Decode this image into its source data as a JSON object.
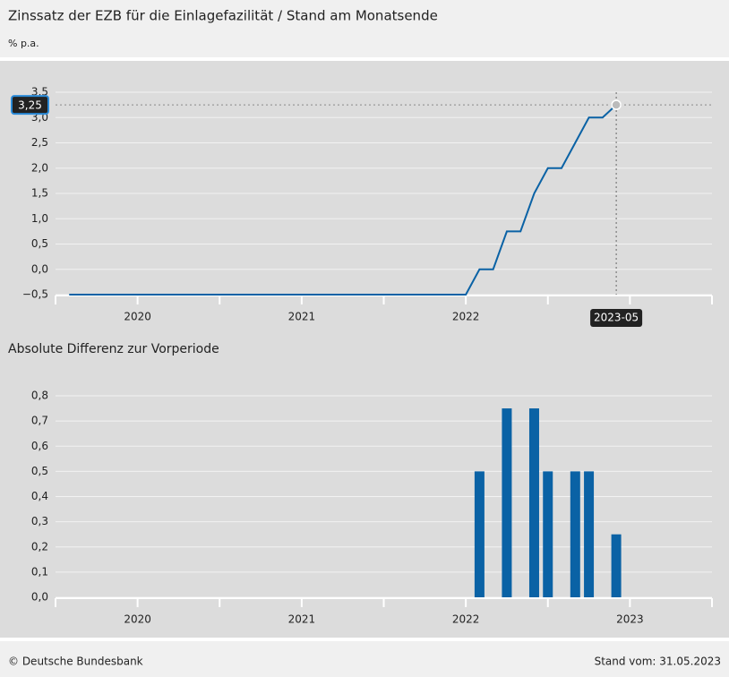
{
  "header": {
    "title": "Zinssatz der EZB für die Einlagefazilität / Stand am Monatsende",
    "subtitle": "% p.a."
  },
  "chart_data": [
    {
      "type": "line",
      "categories": [
        "2020-01",
        "2020-02",
        "2020-03",
        "2020-04",
        "2020-05",
        "2020-06",
        "2020-07",
        "2020-08",
        "2020-09",
        "2020-10",
        "2020-11",
        "2020-12",
        "2021-01",
        "2021-02",
        "2021-03",
        "2021-04",
        "2021-05",
        "2021-06",
        "2021-07",
        "2021-08",
        "2021-09",
        "2021-10",
        "2021-11",
        "2021-12",
        "2022-01",
        "2022-02",
        "2022-03",
        "2022-04",
        "2022-05",
        "2022-06",
        "2022-07",
        "2022-08",
        "2022-09",
        "2022-10",
        "2022-11",
        "2022-12",
        "2023-01",
        "2023-02",
        "2023-03",
        "2023-04",
        "2023-05"
      ],
      "values": [
        -0.5,
        -0.5,
        -0.5,
        -0.5,
        -0.5,
        -0.5,
        -0.5,
        -0.5,
        -0.5,
        -0.5,
        -0.5,
        -0.5,
        -0.5,
        -0.5,
        -0.5,
        -0.5,
        -0.5,
        -0.5,
        -0.5,
        -0.5,
        -0.5,
        -0.5,
        -0.5,
        -0.5,
        -0.5,
        -0.5,
        -0.5,
        -0.5,
        -0.5,
        -0.5,
        0,
        0,
        0.75,
        0.75,
        1.5,
        2.0,
        2.0,
        2.5,
        3.0,
        3.0,
        3.25
      ],
      "color": "#0a62a5",
      "xlim": [
        "2019-12",
        "2023-12"
      ],
      "xticks": [
        "2019-12",
        "2020-06",
        "2020-12",
        "2021-06",
        "2021-12",
        "2022-06",
        "2022-12",
        "2023-06",
        "2023-12"
      ],
      "xtick_labels": [
        {
          "value": "2020-06",
          "label": "2020"
        },
        {
          "value": "2021-06",
          "label": "2021"
        },
        {
          "value": "2022-06",
          "label": "2022"
        }
      ],
      "ylim": [
        -0.5,
        3.5
      ],
      "yticks": [
        {
          "value": -0.5,
          "label": "−0,5"
        },
        {
          "value": 0,
          "label": "0,0"
        },
        {
          "value": 0.5,
          "label": "0,5"
        },
        {
          "value": 1.0,
          "label": "1,0"
        },
        {
          "value": 1.5,
          "label": "1,5"
        },
        {
          "value": 2.0,
          "label": "2,0"
        },
        {
          "value": 2.5,
          "label": "2,5"
        },
        {
          "value": 3.0,
          "label": "3,0"
        },
        {
          "value": 3.5,
          "label": "3,5"
        }
      ],
      "grid": true,
      "hover": {
        "x": "2023-05",
        "value": 3.25,
        "value_label": "3,25"
      }
    },
    {
      "type": "bar",
      "title": "Absolute Differenz zur Vorperiode",
      "categories": [
        "2020-01",
        "2020-02",
        "2020-03",
        "2020-04",
        "2020-05",
        "2020-06",
        "2020-07",
        "2020-08",
        "2020-09",
        "2020-10",
        "2020-11",
        "2020-12",
        "2021-01",
        "2021-02",
        "2021-03",
        "2021-04",
        "2021-05",
        "2021-06",
        "2021-07",
        "2021-08",
        "2021-09",
        "2021-10",
        "2021-11",
        "2021-12",
        "2022-01",
        "2022-02",
        "2022-03",
        "2022-04",
        "2022-05",
        "2022-06",
        "2022-07",
        "2022-08",
        "2022-09",
        "2022-10",
        "2022-11",
        "2022-12",
        "2023-01",
        "2023-02",
        "2023-03",
        "2023-04",
        "2023-05"
      ],
      "values": [
        0,
        0,
        0,
        0,
        0,
        0,
        0,
        0,
        0,
        0,
        0,
        0,
        0,
        0,
        0,
        0,
        0,
        0,
        0,
        0,
        0,
        0,
        0,
        0,
        0,
        0,
        0,
        0,
        0,
        0,
        0.5,
        0,
        0.75,
        0,
        0.75,
        0.5,
        0,
        0.5,
        0.5,
        0,
        0.25
      ],
      "color": "#0a62a5",
      "xlim": [
        "2019-12",
        "2023-12"
      ],
      "xticks": [
        "2019-12",
        "2020-06",
        "2020-12",
        "2021-06",
        "2021-12",
        "2022-06",
        "2022-12",
        "2023-06",
        "2023-12"
      ],
      "xtick_labels": [
        {
          "value": "2020-06",
          "label": "2020"
        },
        {
          "value": "2021-06",
          "label": "2021"
        },
        {
          "value": "2022-06",
          "label": "2022"
        },
        {
          "value": "2023-06",
          "label": "2023"
        }
      ],
      "ylim": [
        0,
        0.8
      ],
      "yticks": [
        {
          "value": 0,
          "label": "0,0"
        },
        {
          "value": 0.1,
          "label": "0,1"
        },
        {
          "value": 0.2,
          "label": "0,2"
        },
        {
          "value": 0.3,
          "label": "0,3"
        },
        {
          "value": 0.4,
          "label": "0,4"
        },
        {
          "value": 0.5,
          "label": "0,5"
        },
        {
          "value": 0.6,
          "label": "0,6"
        },
        {
          "value": 0.7,
          "label": "0,7"
        },
        {
          "value": 0.8,
          "label": "0,8"
        }
      ],
      "grid": true
    }
  ],
  "footer": {
    "source": "© Deutsche Bundesbank",
    "date": "Stand vom: 31.05.2023"
  }
}
